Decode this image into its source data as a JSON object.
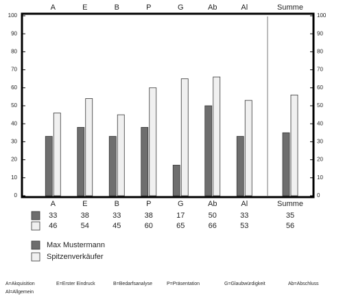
{
  "chart_data": {
    "type": "bar",
    "categories": [
      "A",
      "E",
      "B",
      "P",
      "G",
      "Ab",
      "Al",
      "Summe"
    ],
    "series": [
      {
        "name": "Max Mustermann",
        "color": "#6e6e6e",
        "values": [
          33,
          38,
          33,
          38,
          17,
          50,
          33,
          35
        ]
      },
      {
        "name": "Spitzenverkäufer",
        "color": "#f0f0f0",
        "values": [
          46,
          54,
          45,
          60,
          65,
          66,
          53,
          56
        ]
      }
    ],
    "ylim": [
      0,
      100
    ],
    "yticks": [
      0,
      10,
      20,
      30,
      40,
      50,
      60,
      70,
      80,
      90,
      100
    ],
    "footnote": [
      "A=Akquisition",
      "E=Erster Eindruck",
      "B=Bedarfsanalyse",
      "P=Präsentation",
      "G=Glaubwürdigkeit",
      "Ab=Abschluss",
      "Al=Allgemein"
    ]
  }
}
